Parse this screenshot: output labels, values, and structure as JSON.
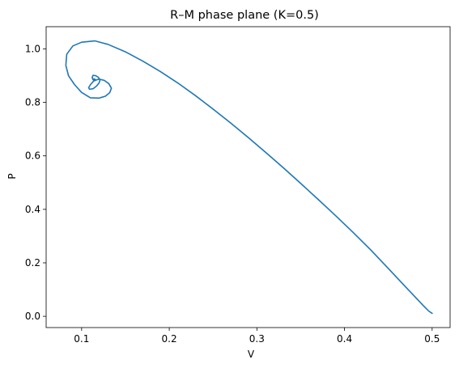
{
  "chart_data": {
    "type": "line",
    "title": "R–M phase plane (K=0.5)",
    "xlabel": "V",
    "ylabel": "P",
    "xlim": [
      0.0595,
      0.5205
    ],
    "ylim": [
      -0.042,
      1.083
    ],
    "xticks": [
      {
        "value": 0.1,
        "label": "0.1"
      },
      {
        "value": 0.2,
        "label": "0.2"
      },
      {
        "value": 0.3,
        "label": "0.3"
      },
      {
        "value": 0.4,
        "label": "0.4"
      },
      {
        "value": 0.5,
        "label": "0.5"
      }
    ],
    "yticks": [
      {
        "value": 0.0,
        "label": "0.0"
      },
      {
        "value": 0.2,
        "label": "0.2"
      },
      {
        "value": 0.4,
        "label": "0.4"
      },
      {
        "value": 0.6,
        "label": "0.6"
      },
      {
        "value": 0.8,
        "label": "0.8"
      },
      {
        "value": 1.0,
        "label": "1.0"
      }
    ],
    "grid": false,
    "series": [
      {
        "color": "#1f77b4",
        "x": [
          0.5,
          0.496,
          0.49,
          0.47,
          0.45,
          0.43,
          0.41,
          0.39,
          0.37,
          0.35,
          0.33,
          0.31,
          0.29,
          0.27,
          0.25,
          0.23,
          0.21,
          0.19,
          0.17,
          0.15,
          0.13,
          0.115,
          0.1,
          0.09,
          0.083,
          0.082,
          0.085,
          0.092,
          0.1,
          0.11,
          0.12,
          0.127,
          0.132,
          0.134,
          0.131,
          0.126,
          0.12,
          0.114,
          0.11,
          0.108,
          0.109,
          0.113,
          0.117,
          0.12,
          0.121,
          0.119,
          0.116,
          0.113,
          0.112,
          0.113,
          0.115,
          0.116,
          0.115,
          0.114
        ],
        "y": [
          0.011,
          0.02,
          0.04,
          0.109,
          0.179,
          0.248,
          0.313,
          0.376,
          0.437,
          0.497,
          0.556,
          0.613,
          0.669,
          0.723,
          0.775,
          0.825,
          0.872,
          0.915,
          0.954,
          0.989,
          1.017,
          1.03,
          1.025,
          1.011,
          0.98,
          0.938,
          0.9,
          0.866,
          0.837,
          0.817,
          0.816,
          0.823,
          0.836,
          0.853,
          0.87,
          0.882,
          0.887,
          0.881,
          0.866,
          0.855,
          0.849,
          0.851,
          0.861,
          0.873,
          0.884,
          0.894,
          0.9,
          0.901,
          0.893,
          0.885,
          0.881,
          0.883,
          0.887,
          0.888
        ]
      }
    ]
  }
}
